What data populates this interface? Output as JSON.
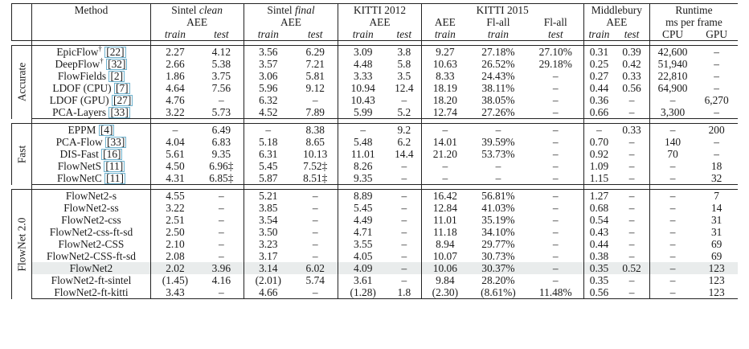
{
  "header": {
    "method": "Method",
    "groups": {
      "sintel_clean": "Sintel clean",
      "sintel_final": "Sintel final",
      "kitti2012": "KITTI 2012",
      "kitti2015": "KITTI 2015",
      "middlebury": "Middlebury",
      "runtime": "Runtime"
    },
    "sub": {
      "aee": "AEE",
      "flall": "Fl-all",
      "ms_per_frame": "ms per frame",
      "train": "train",
      "test": "test",
      "cpu": "CPU",
      "gpu": "GPU"
    }
  },
  "sections": [
    {
      "name": "Accurate",
      "rows": [
        {
          "method": "EpicFlow",
          "sup": "†",
          "ref": "[22]",
          "cells": [
            "2.27",
            "4.12",
            "3.56",
            "6.29",
            "3.09",
            "3.8",
            "9.27",
            "27.18%",
            "27.10%",
            "0.31",
            "0.39",
            "42,600",
            "–"
          ],
          "bold": [
            4,
            5,
            8
          ]
        },
        {
          "method": "DeepFlow",
          "sup": "†",
          "ref": "[32]",
          "cells": [
            "2.66",
            "5.38",
            "3.57",
            "7.21",
            "4.48",
            "5.8",
            "10.63",
            "26.52%",
            "29.18%",
            "0.25",
            "0.42",
            "51,940",
            "–"
          ],
          "bold": [
            9
          ]
        },
        {
          "method": "FlowFields",
          "sup": "",
          "ref": "[2]",
          "cells": [
            "1.86",
            "3.75",
            "3.06",
            "5.81",
            "3.33",
            "3.5",
            "8.33",
            "24.43%",
            "–",
            "0.27",
            "0.33",
            "22,810",
            "–"
          ],
          "bold": [
            0,
            1,
            2,
            3,
            6,
            7,
            10
          ]
        },
        {
          "method": "LDOF (CPU)",
          "sup": "",
          "ref": "[7]",
          "cells": [
            "4.64",
            "7.56",
            "5.96",
            "9.12",
            "10.94",
            "12.4",
            "18.19",
            "38.11%",
            "–",
            "0.44",
            "0.56",
            "64,900",
            "–"
          ],
          "bold": []
        },
        {
          "method": "LDOF (GPU)",
          "sup": "",
          "ref": "[27]",
          "cells": [
            "4.76",
            "–",
            "6.32",
            "–",
            "10.43",
            "–",
            "18.20",
            "38.05%",
            "–",
            "0.36",
            "–",
            "–",
            "6,270"
          ],
          "bold": []
        },
        {
          "method": "PCA-Layers",
          "sup": "",
          "ref": "[33]",
          "cells": [
            "3.22",
            "5.73",
            "4.52",
            "7.89",
            "5.99",
            "5.2",
            "12.74",
            "27.26%",
            "–",
            "0.66",
            "–",
            "3,300",
            "–"
          ],
          "bold": [
            11
          ]
        }
      ]
    },
    {
      "name": "Fast",
      "rows": [
        {
          "method": "EPPM",
          "sup": "",
          "ref": "[4]",
          "cells": [
            "–",
            "6.49",
            "–",
            "8.38",
            "–",
            "9.2",
            "–",
            "–",
            "–",
            "–",
            "0.33",
            "–",
            "200"
          ],
          "bold": [
            1,
            3,
            10
          ]
        },
        {
          "method": "PCA-Flow",
          "sup": "",
          "ref": "[33]",
          "cells": [
            "4.04",
            "6.83",
            "5.18",
            "8.65",
            "5.48",
            "6.2",
            "14.01",
            "39.59%",
            "–",
            "0.70",
            "–",
            "140",
            "–"
          ],
          "bold": [
            0,
            2,
            4,
            5,
            6,
            7,
            9
          ]
        },
        {
          "method": "DIS-Fast",
          "sup": "",
          "ref": "[16]",
          "cells": [
            "5.61",
            "9.35",
            "6.31",
            "10.13",
            "11.01",
            "14.4",
            "21.20",
            "53.73%",
            "–",
            "0.92",
            "–",
            "70",
            "–"
          ],
          "bold": []
        },
        {
          "method": "FlowNetS",
          "sup": "",
          "ref": "[11]",
          "cells": [
            "4.50",
            "6.96‡",
            "5.45",
            "7.52‡",
            "8.26",
            "–",
            "–",
            "–",
            "–",
            "1.09",
            "–",
            "–",
            "18"
          ],
          "bold": [
            12
          ]
        },
        {
          "method": "FlowNetC",
          "sup": "",
          "ref": "[11]",
          "cells": [
            "4.31",
            "6.85‡",
            "5.87",
            "8.51‡",
            "9.35",
            "–",
            "–",
            "–",
            "–",
            "1.15",
            "–",
            "–",
            "32"
          ],
          "bold": []
        }
      ]
    },
    {
      "name": "FlowNet 2.0",
      "rows": [
        {
          "method": "FlowNet2-s",
          "sup": "",
          "ref": "",
          "cells": [
            "4.55",
            "–",
            "5.21",
            "–",
            "8.89",
            "–",
            "16.42",
            "56.81%",
            "–",
            "1.27",
            "–",
            "–",
            "7"
          ],
          "bold": [
            12
          ]
        },
        {
          "method": "FlowNet2-ss",
          "sup": "",
          "ref": "",
          "cells": [
            "3.22",
            "–",
            "3.85",
            "–",
            "5.45",
            "–",
            "12.84",
            "41.03%",
            "–",
            "0.68",
            "–",
            "–",
            "14"
          ],
          "bold": []
        },
        {
          "method": "FlowNet2-css",
          "sup": "",
          "ref": "",
          "cells": [
            "2.51",
            "–",
            "3.54",
            "–",
            "4.49",
            "–",
            "11.01",
            "35.19%",
            "–",
            "0.54",
            "–",
            "–",
            "31"
          ],
          "bold": []
        },
        {
          "method": "FlowNet2-css-ft-sd",
          "sup": "",
          "ref": "",
          "cells": [
            "2.50",
            "–",
            "3.50",
            "–",
            "4.71",
            "–",
            "11.18",
            "34.10%",
            "–",
            "0.43",
            "–",
            "–",
            "31"
          ],
          "bold": []
        },
        {
          "method": "FlowNet2-CSS",
          "sup": "",
          "ref": "",
          "cells": [
            "2.10",
            "–",
            "3.23",
            "–",
            "3.55",
            "–",
            "8.94",
            "29.77%",
            "–",
            "0.44",
            "–",
            "–",
            "69"
          ],
          "bold": [
            4,
            6
          ]
        },
        {
          "method": "FlowNet2-CSS-ft-sd",
          "sup": "",
          "ref": "",
          "cells": [
            "2.08",
            "–",
            "3.17",
            "–",
            "4.05",
            "–",
            "10.07",
            "30.73%",
            "–",
            "0.38",
            "–",
            "–",
            "69"
          ],
          "bold": []
        },
        {
          "method": "FlowNet2",
          "sup": "",
          "ref": "",
          "cells": [
            "2.02",
            "3.96",
            "3.14",
            "6.02",
            "4.09",
            "–",
            "10.06",
            "30.37%",
            "–",
            "0.35",
            "0.52",
            "–",
            "123"
          ],
          "bold": [
            0,
            1,
            2,
            9,
            10
          ],
          "highlight": true
        },
        {
          "method": "FlowNet2-ft-sintel",
          "sup": "",
          "ref": "",
          "cells": [
            "(1.45)",
            "4.16",
            "(2.01)",
            "5.74",
            "3.61",
            "–",
            "9.84",
            "28.20%",
            "–",
            "0.35",
            "–",
            "–",
            "123"
          ],
          "bold": [
            3,
            7
          ]
        },
        {
          "method": "FlowNet2-ft-kitti",
          "sup": "",
          "ref": "",
          "cells": [
            "3.43",
            "–",
            "4.66",
            "–",
            "(1.28)",
            "1.8",
            "(2.30)",
            "(8.61%)",
            "11.48%",
            "0.56",
            "–",
            "–",
            "123"
          ],
          "bold": [
            5,
            8
          ]
        }
      ]
    }
  ]
}
